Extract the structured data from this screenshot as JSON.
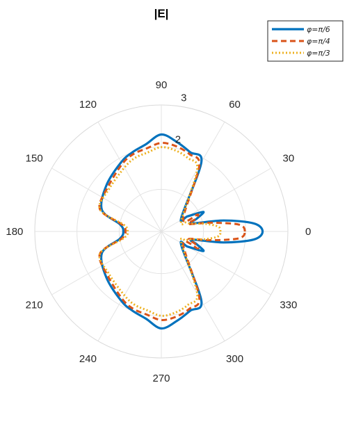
{
  "chart_data": {
    "type": "line",
    "projection": "polar",
    "title": "|E|",
    "theta_unit": "degrees",
    "theta_ticks": [
      "0",
      "30",
      "60",
      "90",
      "120",
      "150",
      "180",
      "210",
      "240",
      "270",
      "300",
      "330"
    ],
    "r_ticks": [
      "1",
      "2",
      "3"
    ],
    "r_lim": [
      0,
      3
    ],
    "grid": true,
    "legend_position": "top-right",
    "series": [
      {
        "name": "φ=π/6",
        "color": "#0072BD",
        "line_style": "solid",
        "mainlobe_peak_r": 2.4,
        "points": [
          [
            0,
            2.4
          ],
          [
            5,
            2.2
          ],
          [
            10,
            1.5
          ],
          [
            15,
            0.75
          ],
          [
            20,
            0.9
          ],
          [
            25,
            1.1
          ],
          [
            30,
            0.72
          ],
          [
            35,
            0.58
          ],
          [
            60,
            1.9
          ],
          [
            70,
            2.0
          ],
          [
            80,
            2.15
          ],
          [
            90,
            2.3
          ],
          [
            100,
            2.1
          ],
          [
            110,
            2.0
          ],
          [
            120,
            1.9
          ],
          [
            140,
            1.7
          ],
          [
            160,
            1.5
          ],
          [
            170,
            1.0
          ],
          [
            180,
            0.9
          ],
          [
            190,
            1.0
          ],
          [
            200,
            1.5
          ],
          [
            220,
            1.7
          ],
          [
            240,
            1.9
          ],
          [
            250,
            2.0
          ],
          [
            260,
            2.1
          ],
          [
            270,
            2.3
          ],
          [
            280,
            2.15
          ],
          [
            290,
            2.0
          ],
          [
            300,
            1.9
          ],
          [
            325,
            0.58
          ],
          [
            330,
            0.72
          ],
          [
            335,
            1.1
          ],
          [
            340,
            0.9
          ],
          [
            345,
            0.75
          ],
          [
            350,
            1.5
          ],
          [
            355,
            2.2
          ]
        ]
      },
      {
        "name": "φ=π/4",
        "color": "#D95319",
        "line_style": "dashed",
        "mainlobe_peak_r": 1.98,
        "points": [
          [
            0,
            1.98
          ],
          [
            5,
            1.85
          ],
          [
            10,
            1.2
          ],
          [
            15,
            0.68
          ],
          [
            20,
            0.85
          ],
          [
            25,
            0.95
          ],
          [
            30,
            0.6
          ],
          [
            60,
            1.8
          ],
          [
            70,
            1.95
          ],
          [
            80,
            2.05
          ],
          [
            90,
            2.1
          ],
          [
            100,
            2.0
          ],
          [
            110,
            1.95
          ],
          [
            120,
            1.85
          ],
          [
            140,
            1.65
          ],
          [
            160,
            1.55
          ],
          [
            170,
            0.95
          ],
          [
            180,
            0.85
          ],
          [
            190,
            0.95
          ],
          [
            200,
            1.55
          ],
          [
            220,
            1.65
          ],
          [
            240,
            1.85
          ],
          [
            250,
            1.95
          ],
          [
            260,
            2.0
          ],
          [
            270,
            2.1
          ],
          [
            280,
            2.05
          ],
          [
            290,
            1.95
          ],
          [
            300,
            1.8
          ],
          [
            330,
            0.6
          ],
          [
            335,
            0.95
          ],
          [
            340,
            0.85
          ],
          [
            345,
            0.68
          ],
          [
            350,
            1.2
          ],
          [
            355,
            1.85
          ]
        ]
      },
      {
        "name": "φ=π/3",
        "color": "#EDB120",
        "line_style": "dotted",
        "mainlobe_peak_r": 1.4,
        "points": [
          [
            0,
            1.4
          ],
          [
            5,
            1.35
          ],
          [
            10,
            1.05
          ],
          [
            15,
            0.72
          ],
          [
            20,
            0.62
          ],
          [
            30,
            0.55
          ],
          [
            60,
            1.7
          ],
          [
            70,
            1.85
          ],
          [
            80,
            1.95
          ],
          [
            90,
            2.0
          ],
          [
            100,
            1.9
          ],
          [
            110,
            1.85
          ],
          [
            120,
            1.75
          ],
          [
            140,
            1.6
          ],
          [
            160,
            1.55
          ],
          [
            170,
            0.9
          ],
          [
            180,
            0.8
          ],
          [
            190,
            0.9
          ],
          [
            200,
            1.55
          ],
          [
            220,
            1.6
          ],
          [
            240,
            1.75
          ],
          [
            250,
            1.85
          ],
          [
            260,
            1.9
          ],
          [
            270,
            2.0
          ],
          [
            280,
            1.95
          ],
          [
            290,
            1.85
          ],
          [
            300,
            1.7
          ],
          [
            330,
            0.55
          ],
          [
            340,
            0.62
          ],
          [
            345,
            0.72
          ],
          [
            350,
            1.05
          ],
          [
            355,
            1.35
          ]
        ]
      }
    ]
  }
}
